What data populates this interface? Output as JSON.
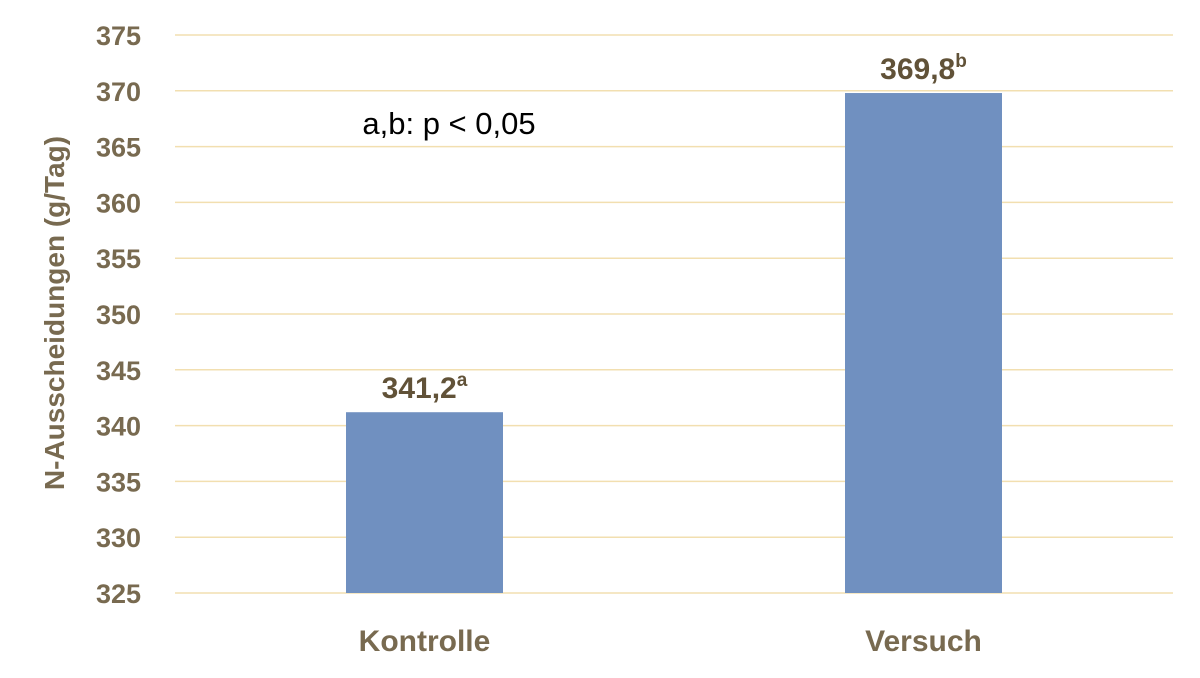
{
  "chart_data": {
    "type": "bar",
    "categories": [
      "Kontrolle",
      "Versuch"
    ],
    "values": [
      341.2,
      369.8
    ],
    "value_labels": [
      "341,2",
      "369,8"
    ],
    "significance_letters": [
      "a",
      "b"
    ],
    "ylabel": "N-Ausscheidungen (g/Tag)",
    "xlabel": "",
    "ylim": [
      325,
      375
    ],
    "yticks": [
      325,
      330,
      335,
      340,
      345,
      350,
      355,
      360,
      365,
      370,
      375
    ],
    "ytick_labels": [
      "325",
      "330",
      "335",
      "340",
      "345",
      "350",
      "355",
      "360",
      "365",
      "370",
      "375"
    ],
    "annotation": "a,b: p < 0,05",
    "grid": true,
    "legend": "none",
    "colors": {
      "bar": "#7090c0",
      "tick_text": "#786a50",
      "label_text": "#615238",
      "grid": "#f2dfb0"
    }
  }
}
